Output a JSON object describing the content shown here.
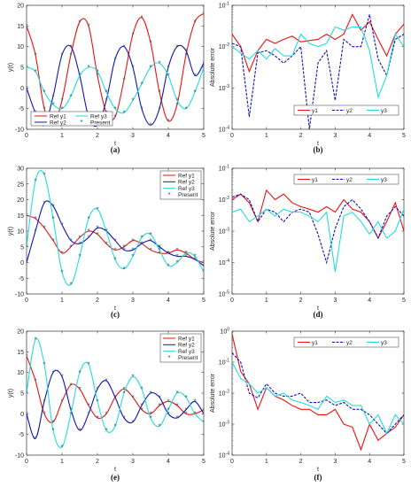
{
  "colors": {
    "red": "#ee1111",
    "blue": "#1111bb",
    "cyan": "#22dddd",
    "marker": "#2a6a6a",
    "frame": "#333333"
  },
  "chart_data": [
    {
      "id": "a",
      "caption": "(a)",
      "type": "line",
      "xlabel": "t",
      "ylabel": "y(t)",
      "xlim": [
        0,
        5
      ],
      "ylim": [
        -10,
        20
      ],
      "xticks": [
        0,
        1,
        2,
        3,
        4,
        5
      ],
      "yticks": [
        -10,
        -5,
        0,
        5,
        10,
        15,
        20
      ],
      "legend": {
        "placement": "bottom-left",
        "layout": "2x2",
        "entries": [
          "Ref y1",
          "Ref y3",
          "Ref y2",
          "Present"
        ]
      },
      "series": [
        {
          "name": "Ref y1",
          "color": "red",
          "x": [
            0,
            0.25,
            0.5,
            0.75,
            1,
            1.25,
            1.5,
            1.75,
            2,
            2.25,
            2.5,
            2.75,
            3,
            3.25,
            3.5,
            3.75,
            4,
            4.25,
            4.5,
            4.75,
            5
          ],
          "y": [
            15,
            8,
            -5,
            -9,
            -3,
            8,
            16,
            15,
            3,
            -6,
            -7,
            2,
            13,
            17,
            11,
            -1,
            -8,
            -4,
            8,
            16,
            18
          ]
        },
        {
          "name": "Ref y2",
          "color": "blue",
          "x": [
            0,
            0.25,
            0.5,
            0.75,
            1,
            1.25,
            1.5,
            1.75,
            2,
            2.25,
            2.5,
            2.75,
            3,
            3.25,
            3.5,
            3.75,
            4,
            4.25,
            4.5,
            4.75,
            5
          ],
          "y": [
            0,
            -6,
            -9,
            -2,
            8,
            10,
            3,
            -7,
            -9,
            -3,
            7,
            10,
            5,
            -5,
            -9,
            -5,
            5,
            10,
            9,
            3,
            6
          ]
        },
        {
          "name": "Ref y3",
          "color": "cyan",
          "x": [
            0,
            0.25,
            0.5,
            0.75,
            1,
            1.25,
            1.5,
            1.75,
            2,
            2.25,
            2.5,
            2.75,
            3,
            3.25,
            3.5,
            3.75,
            4,
            4.25,
            4.5,
            4.75,
            5
          ],
          "y": [
            5,
            4,
            -1,
            -4,
            -5,
            -2,
            3,
            5,
            4,
            -1,
            -5,
            -6,
            -3,
            1,
            5,
            6,
            3,
            -3,
            -5,
            -1,
            5
          ]
        }
      ]
    },
    {
      "id": "b",
      "caption": "(b)",
      "type": "line",
      "xlabel": "t",
      "ylabel": "Absolute error",
      "xlim": [
        0,
        5
      ],
      "ylim_log": [
        -4,
        -1
      ],
      "xticks": [
        0,
        1,
        2,
        3,
        4,
        5
      ],
      "yticks": [
        "10^-4",
        "10^-3",
        "10^-2",
        "10^-1"
      ],
      "legend": {
        "placement": "bottom",
        "layout": "row",
        "entries": [
          "y1",
          "y2",
          "y3"
        ]
      },
      "series": [
        {
          "name": "y1",
          "color": "red",
          "style": "solid",
          "x": [
            0,
            0.25,
            0.5,
            0.75,
            1,
            1.25,
            1.5,
            1.75,
            2,
            2.25,
            2.5,
            2.75,
            3,
            3.25,
            3.5,
            3.75,
            4,
            4.25,
            4.5,
            4.75,
            5
          ],
          "y": [
            0.02,
            0.01,
            0.0025,
            0.008,
            0.015,
            0.012,
            0.015,
            0.018,
            0.013,
            0.014,
            0.015,
            0.02,
            0.015,
            0.02,
            0.06,
            0.025,
            0.04,
            0.015,
            0.006,
            0.02,
            0.035
          ]
        },
        {
          "name": "y2",
          "color": "blue",
          "style": "dashed",
          "x": [
            0,
            0.25,
            0.5,
            0.75,
            1,
            1.25,
            1.5,
            1.75,
            2,
            2.25,
            2.5,
            2.75,
            3,
            3.25,
            3.5,
            3.75,
            4,
            4.25,
            4.5,
            4.75,
            5
          ],
          "y": [
            0.012,
            0.01,
            0.0002,
            0.007,
            0.008,
            0.006,
            0.004,
            0.006,
            0.01,
            0.0001,
            0.004,
            0.008,
            0.0005,
            0.015,
            0.01,
            0.01,
            0.06,
            0.005,
            0.002,
            0.015,
            0.02
          ]
        },
        {
          "name": "y3",
          "color": "cyan",
          "style": "solid",
          "x": [
            0,
            0.25,
            0.5,
            0.75,
            1,
            1.25,
            1.5,
            1.75,
            2,
            2.25,
            2.5,
            2.75,
            3,
            3.25,
            3.5,
            3.75,
            4,
            4.25,
            4.5,
            4.75,
            5
          ],
          "y": [
            0.01,
            0.007,
            0.005,
            0.008,
            0.005,
            0.009,
            0.006,
            0.006,
            0.02,
            0.012,
            0.01,
            0.012,
            0.03,
            0.025,
            0.03,
            0.03,
            0.008,
            0.0006,
            0.002,
            0.02,
            0.01
          ]
        }
      ]
    },
    {
      "id": "c",
      "caption": "(c)",
      "type": "line",
      "xlabel": "t",
      "ylabel": "y(t)",
      "xlim": [
        0,
        5
      ],
      "ylim": [
        -10,
        30
      ],
      "xticks": [
        0,
        1,
        2,
        3,
        4,
        5
      ],
      "yticks": [
        -10,
        -5,
        0,
        5,
        10,
        15,
        20,
        25,
        30
      ],
      "legend": {
        "placement": "top-right",
        "layout": "column",
        "entries": [
          "Ref y1",
          "Ref y2",
          "Ref y3",
          "Present"
        ]
      },
      "series": [
        {
          "name": "Ref y1",
          "color": "red",
          "x": [
            0,
            0.25,
            0.5,
            0.75,
            1,
            1.25,
            1.5,
            1.75,
            2,
            2.25,
            2.5,
            2.75,
            3,
            3.25,
            3.5,
            3.75,
            4,
            4.25,
            4.5,
            4.75,
            5
          ],
          "y": [
            15,
            14,
            11,
            7,
            3,
            5,
            8,
            10,
            9,
            6,
            4,
            5,
            7,
            6,
            4,
            3,
            3,
            4,
            3,
            1,
            0
          ]
        },
        {
          "name": "Ref y2",
          "color": "blue",
          "x": [
            0,
            0.25,
            0.5,
            0.75,
            1,
            1.25,
            1.5,
            1.75,
            2,
            2.25,
            2.5,
            2.75,
            3,
            3.25,
            3.5,
            3.75,
            4,
            4.25,
            4.5,
            4.75,
            5
          ],
          "y": [
            0,
            10,
            19,
            18,
            12,
            7,
            6,
            8,
            11,
            10,
            7,
            4,
            4,
            6,
            7,
            5,
            3,
            2,
            2,
            1,
            -1
          ]
        },
        {
          "name": "Ref y3",
          "color": "cyan",
          "x": [
            0,
            0.25,
            0.5,
            0.75,
            1,
            1.25,
            1.5,
            1.75,
            2,
            2.25,
            2.5,
            2.75,
            3,
            3.25,
            3.5,
            3.75,
            4,
            4.25,
            4.5,
            4.75,
            5
          ],
          "y": [
            5,
            26,
            28,
            14,
            -3,
            -7,
            2,
            14,
            17,
            10,
            1,
            -2,
            2,
            8,
            9,
            4,
            -1,
            0,
            3,
            2,
            -3
          ]
        }
      ]
    },
    {
      "id": "d",
      "caption": "(d)",
      "type": "line",
      "xlabel": "t",
      "ylabel": "Absolute error",
      "xlim": [
        0,
        5
      ],
      "ylim_log": [
        -5,
        -1
      ],
      "xticks": [
        0,
        1,
        2,
        3,
        4,
        5
      ],
      "yticks": [
        "10^-5",
        "10^-4",
        "10^-3",
        "10^-2",
        "10^-1"
      ],
      "legend": {
        "placement": "top",
        "layout": "row",
        "entries": [
          "y1",
          "y2",
          "y3"
        ]
      },
      "series": [
        {
          "name": "y1",
          "color": "red",
          "style": "solid",
          "x": [
            0,
            0.25,
            0.5,
            0.75,
            1,
            1.25,
            1.5,
            1.75,
            2,
            2.25,
            2.5,
            2.75,
            3,
            3.25,
            3.5,
            3.75,
            4,
            4.25,
            4.5,
            4.75,
            5
          ],
          "y": [
            0.01,
            0.015,
            0.008,
            0.002,
            0.02,
            0.01,
            0.015,
            0.008,
            0.006,
            0.005,
            0.004,
            0.006,
            0.004,
            0.01,
            0.005,
            0.004,
            0.002,
            0.0006,
            0.002,
            0.008,
            0.001
          ]
        },
        {
          "name": "y2",
          "color": "blue",
          "style": "dashed",
          "x": [
            0,
            0.25,
            0.5,
            0.75,
            1,
            1.25,
            1.5,
            1.75,
            2,
            2.25,
            2.5,
            2.75,
            3,
            3.25,
            3.5,
            3.75,
            4,
            4.25,
            4.5,
            4.75,
            5
          ],
          "y": [
            0.012,
            0.015,
            0.01,
            0.002,
            0.005,
            0.004,
            0.002,
            0.004,
            0.005,
            0.004,
            0.0008,
            0.0001,
            0.0012,
            0.006,
            0.01,
            0.005,
            0.002,
            0.0006,
            0.003,
            0.006,
            0.003
          ]
        },
        {
          "name": "y3",
          "color": "cyan",
          "style": "solid",
          "x": [
            0,
            0.25,
            0.5,
            0.75,
            1,
            1.25,
            1.5,
            1.75,
            2,
            2.25,
            2.5,
            2.75,
            3,
            3.25,
            3.5,
            3.75,
            4,
            4.25,
            4.5,
            4.75,
            5
          ],
          "y": [
            0.004,
            0.005,
            0.002,
            0.003,
            0.005,
            0.003,
            0.005,
            0.004,
            0.004,
            0.003,
            0.002,
            0.004,
            5e-05,
            0.003,
            0.004,
            0.002,
            0.0008,
            0.002,
            0.0006,
            0.001,
            0.005
          ]
        }
      ]
    },
    {
      "id": "e",
      "caption": "(e)",
      "type": "line",
      "xlabel": "t",
      "ylabel": "y(t)",
      "xlim": [
        0,
        5
      ],
      "ylim": [
        -10,
        20
      ],
      "xticks": [
        0,
        1,
        2,
        3,
        4,
        5
      ],
      "yticks": [
        -10,
        -5,
        0,
        5,
        10,
        15,
        20
      ],
      "legend": {
        "placement": "top-right",
        "layout": "column",
        "entries": [
          "Ref y1",
          "Ref y2",
          "Ref y3",
          "Present"
        ]
      },
      "series": [
        {
          "name": "Ref y1",
          "color": "red",
          "x": [
            0,
            0.25,
            0.5,
            0.75,
            1,
            1.25,
            1.5,
            1.75,
            2,
            2.25,
            2.5,
            2.75,
            3,
            3.25,
            3.5,
            3.75,
            4,
            4.25,
            4.5,
            4.75,
            5
          ],
          "y": [
            14,
            8,
            0,
            -2,
            3,
            7,
            6,
            2,
            -1,
            0,
            4,
            6,
            4,
            1,
            0,
            2,
            3,
            2,
            0,
            0,
            1
          ]
        },
        {
          "name": "Ref y2",
          "color": "blue",
          "x": [
            0,
            0.25,
            0.5,
            0.75,
            1,
            1.25,
            1.5,
            1.75,
            2,
            2.25,
            2.5,
            2.75,
            3,
            3.25,
            3.5,
            3.75,
            4,
            4.25,
            4.5,
            4.75,
            5
          ],
          "y": [
            0,
            -6,
            3,
            10,
            9,
            1,
            -4,
            0,
            6,
            8,
            4,
            -1,
            -2,
            2,
            5,
            4,
            0,
            -1,
            1,
            3,
            0
          ]
        },
        {
          "name": "Ref y3",
          "color": "cyan",
          "x": [
            0,
            0.25,
            0.5,
            0.75,
            1,
            1.25,
            1.5,
            1.75,
            2,
            2.25,
            2.5,
            2.75,
            3,
            3.25,
            3.5,
            3.75,
            4,
            4.25,
            4.5,
            4.75,
            5
          ],
          "y": [
            5,
            18,
            12,
            -4,
            -8,
            0,
            10,
            12,
            3,
            -4,
            -3,
            5,
            9,
            6,
            -1,
            -3,
            1,
            5,
            4,
            0,
            -2
          ]
        }
      ]
    },
    {
      "id": "f",
      "caption": "(f)",
      "type": "line",
      "xlabel": "t",
      "ylabel": "Absolute error",
      "xlim": [
        0,
        5
      ],
      "ylim_log": [
        -4,
        0
      ],
      "xticks": [
        0,
        1,
        2,
        3,
        4,
        5
      ],
      "yticks": [
        "10^-4",
        "10^-3",
        "10^-2",
        "10^-1",
        "10^0"
      ],
      "legend": {
        "placement": "top",
        "layout": "row",
        "entries": [
          "y1",
          "y2",
          "y3"
        ]
      },
      "series": [
        {
          "name": "y1",
          "color": "red",
          "style": "solid",
          "x": [
            0,
            0.25,
            0.5,
            0.75,
            1,
            1.25,
            1.5,
            1.75,
            2,
            2.25,
            2.5,
            2.75,
            3,
            3.25,
            3.5,
            3.75,
            4,
            4.25,
            4.5,
            4.75,
            5
          ],
          "y": [
            0.8,
            0.05,
            0.02,
            0.003,
            0.015,
            0.008,
            0.006,
            0.004,
            0.003,
            0.003,
            0.002,
            0.002,
            0.003,
            0.001,
            0.0008,
            0.00015,
            0.001,
            0.0003,
            0.0005,
            0.0008,
            0.002
          ]
        },
        {
          "name": "y2",
          "color": "blue",
          "style": "dashed",
          "x": [
            0,
            0.25,
            0.5,
            0.75,
            1,
            1.25,
            1.5,
            1.75,
            2,
            2.25,
            2.5,
            2.75,
            3,
            3.25,
            3.5,
            3.75,
            4,
            4.25,
            4.5,
            4.75,
            5
          ],
          "y": [
            0.2,
            0.1,
            0.01,
            0.007,
            0.02,
            0.01,
            0.008,
            0.008,
            0.01,
            0.005,
            0.005,
            0.006,
            0.004,
            0.005,
            0.003,
            0.003,
            0.002,
            0.001,
            0.0005,
            0.001,
            0.002
          ]
        },
        {
          "name": "y3",
          "color": "cyan",
          "style": "solid",
          "x": [
            0,
            0.25,
            0.5,
            0.75,
            1,
            1.25,
            1.5,
            1.75,
            2,
            2.25,
            2.5,
            2.75,
            3,
            3.25,
            3.5,
            3.75,
            4,
            4.25,
            4.5,
            4.75,
            5
          ],
          "y": [
            0.1,
            0.03,
            0.02,
            0.01,
            0.015,
            0.008,
            0.01,
            0.006,
            0.005,
            0.004,
            0.003,
            0.008,
            0.005,
            0.006,
            0.004,
            0.004,
            0.001,
            0.002,
            0.0005,
            0.002,
            0.001
          ]
        }
      ]
    }
  ]
}
